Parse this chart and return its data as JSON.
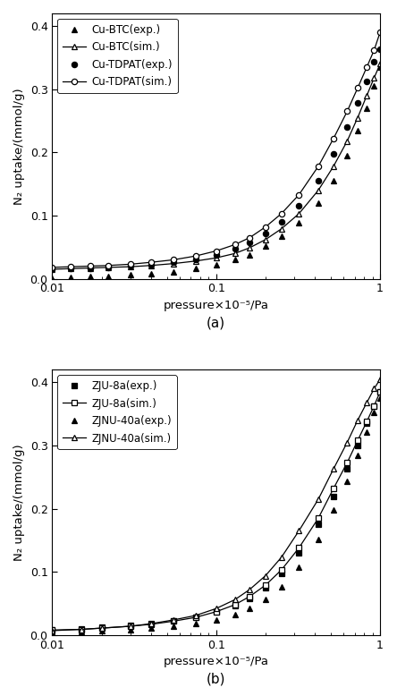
{
  "panel_a": {
    "xlabel": "pressure×10⁻⁵/Pa",
    "ylabel": "N₂ uptake/(mmol/g)",
    "label": "(a)",
    "xlim": [
      0.01,
      1.0
    ],
    "ylim": [
      0,
      0.42
    ],
    "yticks": [
      0.0,
      0.1,
      0.2,
      0.3,
      0.4
    ],
    "series": [
      {
        "label": "Cu-BTC(exp.)",
        "marker": "^",
        "filled": true,
        "line": false,
        "color": "black",
        "x": [
          0.01,
          0.013,
          0.017,
          0.022,
          0.03,
          0.04,
          0.055,
          0.075,
          0.1,
          0.13,
          0.16,
          0.2,
          0.25,
          0.32,
          0.42,
          0.52,
          0.63,
          0.73,
          0.83,
          0.92,
          1.0
        ],
        "y": [
          0.001,
          0.002,
          0.003,
          0.004,
          0.006,
          0.008,
          0.011,
          0.016,
          0.022,
          0.03,
          0.038,
          0.052,
          0.068,
          0.088,
          0.12,
          0.155,
          0.195,
          0.235,
          0.27,
          0.305,
          0.335
        ]
      },
      {
        "label": "Cu-BTC(sim.)",
        "marker": "^",
        "filled": false,
        "line": true,
        "color": "black",
        "x": [
          0.01,
          0.013,
          0.017,
          0.022,
          0.03,
          0.04,
          0.055,
          0.075,
          0.1,
          0.13,
          0.16,
          0.2,
          0.25,
          0.32,
          0.42,
          0.52,
          0.63,
          0.73,
          0.83,
          0.92,
          1.0
        ],
        "y": [
          0.015,
          0.016,
          0.017,
          0.018,
          0.019,
          0.021,
          0.024,
          0.028,
          0.033,
          0.04,
          0.049,
          0.062,
          0.079,
          0.103,
          0.14,
          0.178,
          0.218,
          0.255,
          0.29,
          0.318,
          0.34
        ]
      },
      {
        "label": "Cu-TDPAT(exp.)",
        "marker": "o",
        "filled": true,
        "line": false,
        "color": "black",
        "x": [
          0.01,
          0.013,
          0.017,
          0.022,
          0.03,
          0.04,
          0.055,
          0.075,
          0.1,
          0.13,
          0.16,
          0.2,
          0.25,
          0.32,
          0.42,
          0.52,
          0.63,
          0.73,
          0.83,
          0.92,
          1.0
        ],
        "y": [
          0.015,
          0.016,
          0.017,
          0.018,
          0.02,
          0.022,
          0.026,
          0.031,
          0.038,
          0.047,
          0.057,
          0.072,
          0.09,
          0.115,
          0.155,
          0.198,
          0.24,
          0.278,
          0.312,
          0.343,
          0.363
        ]
      },
      {
        "label": "Cu-TDPAT(sim.)",
        "marker": "o",
        "filled": false,
        "line": true,
        "color": "black",
        "x": [
          0.01,
          0.013,
          0.017,
          0.022,
          0.03,
          0.04,
          0.055,
          0.075,
          0.1,
          0.13,
          0.16,
          0.2,
          0.25,
          0.32,
          0.42,
          0.52,
          0.63,
          0.73,
          0.83,
          0.92,
          1.0
        ],
        "y": [
          0.018,
          0.019,
          0.02,
          0.021,
          0.023,
          0.026,
          0.03,
          0.036,
          0.044,
          0.054,
          0.065,
          0.082,
          0.103,
          0.133,
          0.178,
          0.222,
          0.265,
          0.302,
          0.335,
          0.362,
          0.39
        ]
      }
    ]
  },
  "panel_b": {
    "xlabel": "pressure×10⁻⁵/Pa",
    "ylabel": "N₂ uptake/(mmol/g)",
    "label": "(b)",
    "xlim": [
      0.01,
      1.0
    ],
    "ylim": [
      0,
      0.42
    ],
    "yticks": [
      0.0,
      0.1,
      0.2,
      0.3,
      0.4
    ],
    "series": [
      {
        "label": "ZJU-8a(exp.)",
        "marker": "s",
        "filled": true,
        "line": false,
        "color": "black",
        "x": [
          0.01,
          0.015,
          0.02,
          0.03,
          0.04,
          0.055,
          0.075,
          0.1,
          0.13,
          0.16,
          0.2,
          0.25,
          0.32,
          0.42,
          0.52,
          0.63,
          0.73,
          0.83,
          0.92,
          1.0
        ],
        "y": [
          0.008,
          0.01,
          0.012,
          0.015,
          0.018,
          0.022,
          0.028,
          0.036,
          0.046,
          0.058,
          0.075,
          0.098,
          0.13,
          0.175,
          0.22,
          0.263,
          0.3,
          0.335,
          0.362,
          0.385
        ]
      },
      {
        "label": "ZJU-8a(sim.)",
        "marker": "s",
        "filled": false,
        "line": true,
        "color": "black",
        "x": [
          0.01,
          0.015,
          0.02,
          0.03,
          0.04,
          0.055,
          0.075,
          0.1,
          0.13,
          0.16,
          0.2,
          0.25,
          0.32,
          0.42,
          0.52,
          0.63,
          0.73,
          0.83,
          0.92,
          1.0
        ],
        "y": [
          0.008,
          0.009,
          0.011,
          0.014,
          0.017,
          0.022,
          0.028,
          0.037,
          0.048,
          0.061,
          0.079,
          0.103,
          0.138,
          0.185,
          0.232,
          0.273,
          0.308,
          0.338,
          0.363,
          0.385
        ]
      },
      {
        "label": "ZJNU-40a(exp.)",
        "marker": "^",
        "filled": true,
        "line": false,
        "color": "black",
        "x": [
          0.01,
          0.015,
          0.02,
          0.03,
          0.04,
          0.055,
          0.075,
          0.1,
          0.13,
          0.16,
          0.2,
          0.25,
          0.32,
          0.42,
          0.52,
          0.63,
          0.73,
          0.83,
          0.92,
          1.0
        ],
        "y": [
          0.005,
          0.006,
          0.007,
          0.009,
          0.011,
          0.014,
          0.018,
          0.024,
          0.033,
          0.043,
          0.057,
          0.077,
          0.108,
          0.152,
          0.198,
          0.243,
          0.285,
          0.322,
          0.352,
          0.375
        ]
      },
      {
        "label": "ZJNU-40a(sim.)",
        "marker": "^",
        "filled": false,
        "line": true,
        "color": "black",
        "x": [
          0.01,
          0.015,
          0.02,
          0.03,
          0.04,
          0.055,
          0.075,
          0.1,
          0.13,
          0.16,
          0.2,
          0.25,
          0.32,
          0.42,
          0.52,
          0.63,
          0.73,
          0.83,
          0.92,
          1.0
        ],
        "y": [
          0.007,
          0.009,
          0.011,
          0.014,
          0.018,
          0.024,
          0.031,
          0.042,
          0.056,
          0.072,
          0.094,
          0.123,
          0.165,
          0.215,
          0.263,
          0.305,
          0.34,
          0.368,
          0.39,
          0.405
        ]
      }
    ]
  },
  "figsize": [
    4.44,
    7.78
  ],
  "dpi": 100
}
